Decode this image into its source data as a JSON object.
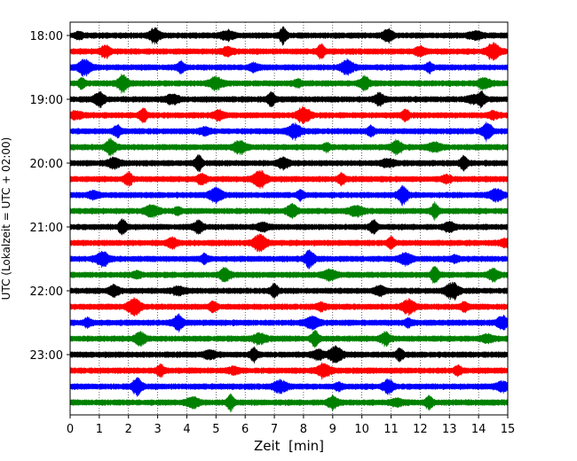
{
  "chart_data": {
    "type": "line",
    "xlabel": "Zeit  [min]",
    "ylabel": "UTC (Lokalzeit = UTC + 02:00)",
    "xlim": [
      0,
      15
    ],
    "x_ticks": [
      "0",
      "1",
      "2",
      "3",
      "4",
      "5",
      "6",
      "7",
      "8",
      "9",
      "10",
      "11",
      "12",
      "13",
      "14",
      "15"
    ],
    "y_ticks": [
      {
        "label": "18:00",
        "trace_index": 0
      },
      {
        "label": "19:00",
        "trace_index": 4
      },
      {
        "label": "20:00",
        "trace_index": 8
      },
      {
        "label": "21:00",
        "trace_index": 12
      },
      {
        "label": "22:00",
        "trace_index": 16
      },
      {
        "label": "23:00",
        "trace_index": 20
      }
    ],
    "trace_count": 24,
    "trace_interval_minutes": 15,
    "color_cycle": [
      "#000000",
      "#ff0000",
      "#0000ff",
      "#008000"
    ],
    "vertical_grid": "dotted",
    "traces": [
      {
        "start": "18:00",
        "bursts_min": [
          0.3,
          2.9,
          5.4,
          7.3,
          10.9,
          13.9
        ]
      },
      {
        "start": "18:15",
        "bursts_min": [
          1.2,
          5.4,
          8.6,
          12.0,
          14.5
        ]
      },
      {
        "start": "18:30",
        "bursts_min": [
          0.5,
          3.8,
          6.3,
          9.5,
          12.3
        ]
      },
      {
        "start": "18:45",
        "bursts_min": [
          0.4,
          1.8,
          5.0,
          7.8,
          10.1,
          14.2
        ]
      },
      {
        "start": "19:00",
        "bursts_min": [
          1.0,
          3.5,
          6.9,
          10.6,
          13.8,
          14.1
        ]
      },
      {
        "start": "19:15",
        "bursts_min": [
          0.2,
          2.5,
          5.1,
          8.0,
          11.5,
          14.5
        ]
      },
      {
        "start": "19:30",
        "bursts_min": [
          1.6,
          4.6,
          7.7,
          10.3,
          14.3
        ]
      },
      {
        "start": "19:45",
        "bursts_min": [
          1.4,
          5.8,
          8.8,
          11.2,
          12.5
        ]
      },
      {
        "start": "20:00",
        "bursts_min": [
          1.5,
          4.4,
          7.3,
          10.9,
          13.5
        ]
      },
      {
        "start": "20:15",
        "bursts_min": [
          2.0,
          4.5,
          6.5,
          9.3,
          12.9
        ]
      },
      {
        "start": "20:30",
        "bursts_min": [
          0.8,
          5.0,
          7.9,
          11.4,
          14.6
        ]
      },
      {
        "start": "20:45",
        "bursts_min": [
          2.8,
          3.7,
          7.6,
          9.8,
          12.5
        ]
      },
      {
        "start": "21:00",
        "bursts_min": [
          1.8,
          4.4,
          6.6,
          10.4,
          13.0
        ]
      },
      {
        "start": "21:15",
        "bursts_min": [
          3.5,
          6.5,
          11.0,
          14.9
        ]
      },
      {
        "start": "21:30",
        "bursts_min": [
          1.1,
          4.6,
          8.2,
          11.5,
          13.2
        ]
      },
      {
        "start": "21:45",
        "bursts_min": [
          2.3,
          5.3,
          8.9,
          12.5,
          14.5
        ]
      },
      {
        "start": "22:00",
        "bursts_min": [
          1.5,
          3.7,
          7.0,
          10.6,
          13.1
        ]
      },
      {
        "start": "22:15",
        "bursts_min": [
          2.2,
          4.9,
          8.6,
          11.6,
          13.5
        ]
      },
      {
        "start": "22:30",
        "bursts_min": [
          0.6,
          3.7,
          8.3,
          11.6,
          14.8
        ]
      },
      {
        "start": "22:45",
        "bursts_min": [
          2.4,
          6.5,
          8.4,
          10.8,
          14.3
        ]
      },
      {
        "start": "23:00",
        "bursts_min": [
          4.8,
          6.3,
          8.5,
          9.1,
          11.3
        ]
      },
      {
        "start": "23:15",
        "bursts_min": [
          3.1,
          5.6,
          8.7,
          13.3
        ]
      },
      {
        "start": "23:30",
        "bursts_min": [
          2.3,
          7.2,
          9.2,
          10.9,
          14.8
        ]
      },
      {
        "start": "23:45",
        "bursts_min": [
          4.2,
          5.5,
          9.0,
          11.2,
          12.3
        ]
      }
    ]
  }
}
